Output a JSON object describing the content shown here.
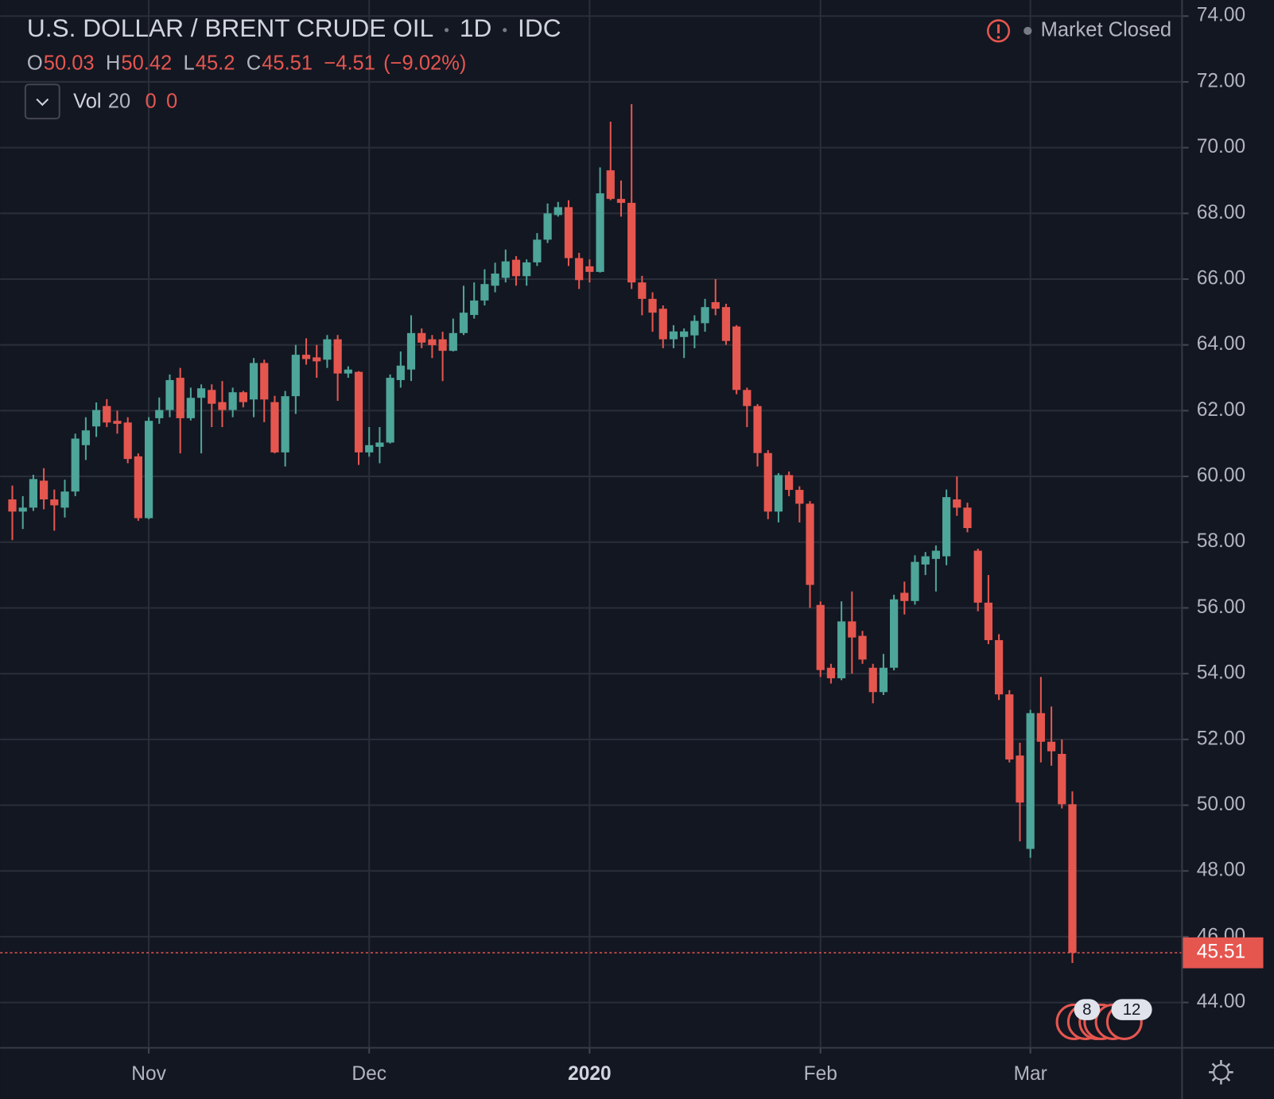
{
  "header": {
    "title": "U.S. DOLLAR / BRENT CRUDE OIL",
    "interval": "1D",
    "source": "IDC",
    "status": "Market Closed",
    "ohlc_letters": [
      "O",
      "H",
      "L",
      "C"
    ],
    "change": "−4.51",
    "change_pct": "(−9.02%)",
    "study": {
      "name": "Vol",
      "length": 20,
      "values": [
        0,
        0
      ]
    }
  },
  "chart_data": {
    "type": "candlestick",
    "up_color": "#4ea599",
    "down_color": "#e5564f",
    "open": [
      59.3,
      58.93,
      59.05,
      59.87,
      59.3,
      59.05,
      59.54,
      60.95,
      61.52,
      62.14,
      61.69,
      61.64,
      60.61,
      58.73,
      61.77,
      62.02,
      63.0,
      61.77,
      62.39,
      62.63,
      62.26,
      62.02,
      62.56,
      62.34,
      63.45,
      62.26,
      60.73,
      62.44,
      63.7,
      63.62,
      63.55,
      64.17,
      63.13,
      63.18,
      60.73,
      60.9,
      61.03,
      62.93,
      63.25,
      64.36,
      64.17,
      64.17,
      63.82,
      64.36,
      64.91,
      65.35,
      65.8,
      66.04,
      66.59,
      66.09,
      66.51,
      67.2,
      67.95,
      68.19,
      66.64,
      66.39,
      66.22,
      69.31,
      68.44,
      68.32,
      65.9,
      65.4,
      65.1,
      64.17,
      64.24,
      64.29,
      64.66,
      65.3,
      65.15,
      64.56,
      62.63,
      62.14,
      60.71,
      58.93,
      60.04,
      59.59,
      59.17,
      56.09,
      54.18,
      53.86,
      55.59,
      55.15,
      54.18,
      53.44,
      54.18,
      56.46,
      56.21,
      57.32,
      57.49,
      57.57,
      59.3,
      59.05,
      57.74,
      56.16,
      55.02,
      53.37,
      51.51,
      48.67,
      52.8,
      51.93,
      51.56,
      50.03
    ],
    "high": [
      59.72,
      59.4,
      60.05,
      60.25,
      59.6,
      59.9,
      61.3,
      61.8,
      62.25,
      62.35,
      62.0,
      61.8,
      60.7,
      61.8,
      62.4,
      63.1,
      63.3,
      62.7,
      62.8,
      62.8,
      62.9,
      62.7,
      62.6,
      63.6,
      63.55,
      62.45,
      62.6,
      64.0,
      64.2,
      64.0,
      64.3,
      64.3,
      63.35,
      63.2,
      61.5,
      61.5,
      63.1,
      63.8,
      64.9,
      64.5,
      64.3,
      64.4,
      64.8,
      65.8,
      65.9,
      66.3,
      66.5,
      66.9,
      66.7,
      66.6,
      67.4,
      68.3,
      68.35,
      68.4,
      66.8,
      66.6,
      69.4,
      70.79,
      69.0,
      71.32,
      66.1,
      65.6,
      65.2,
      64.6,
      64.5,
      64.9,
      65.4,
      66.0,
      65.25,
      64.6,
      62.7,
      62.2,
      60.8,
      60.1,
      60.15,
      59.7,
      59.25,
      56.2,
      54.3,
      56.2,
      56.5,
      55.3,
      54.3,
      54.6,
      56.4,
      56.8,
      57.6,
      57.7,
      57.9,
      59.6,
      60.0,
      59.2,
      57.8,
      57.0,
      55.2,
      53.5,
      51.9,
      52.9,
      53.9,
      53.0,
      52.0,
      50.42
    ],
    "low": [
      58.06,
      58.4,
      58.95,
      59.0,
      58.35,
      58.75,
      59.4,
      60.5,
      61.2,
      61.5,
      61.3,
      60.4,
      58.65,
      58.7,
      61.6,
      61.8,
      60.7,
      61.7,
      60.7,
      61.5,
      61.5,
      61.8,
      62.1,
      61.8,
      61.65,
      60.7,
      60.3,
      61.9,
      63.4,
      63.0,
      63.3,
      62.3,
      63.0,
      60.35,
      60.6,
      60.4,
      61.0,
      62.7,
      62.9,
      63.9,
      63.6,
      62.9,
      63.8,
      64.3,
      64.8,
      65.2,
      65.6,
      65.9,
      65.8,
      65.8,
      66.4,
      67.1,
      67.9,
      66.4,
      65.7,
      65.9,
      66.2,
      68.4,
      67.9,
      65.7,
      64.9,
      64.4,
      63.9,
      63.9,
      63.6,
      63.9,
      64.4,
      64.9,
      64.0,
      62.5,
      61.5,
      60.3,
      58.7,
      58.6,
      59.4,
      58.6,
      56.0,
      53.9,
      53.7,
      53.8,
      54.0,
      54.3,
      53.1,
      53.35,
      54.1,
      55.8,
      56.1,
      57.0,
      56.5,
      57.3,
      58.8,
      58.3,
      55.9,
      54.9,
      53.2,
      51.3,
      48.9,
      48.4,
      51.3,
      51.2,
      49.9,
      45.2
    ],
    "close": [
      58.93,
      59.05,
      59.92,
      59.3,
      59.12,
      59.54,
      61.15,
      61.4,
      62.02,
      61.64,
      61.6,
      60.53,
      58.73,
      61.69,
      62.02,
      62.93,
      61.77,
      62.39,
      62.68,
      62.21,
      62.02,
      62.56,
      62.26,
      63.45,
      62.34,
      60.73,
      62.44,
      63.7,
      63.57,
      63.5,
      64.17,
      63.13,
      63.25,
      60.73,
      60.95,
      61.03,
      63.0,
      63.37,
      64.36,
      64.07,
      63.99,
      63.82,
      64.36,
      64.98,
      65.35,
      65.85,
      66.17,
      66.54,
      66.09,
      66.51,
      67.2,
      68.0,
      68.19,
      66.64,
      65.97,
      66.22,
      68.61,
      68.44,
      68.32,
      65.9,
      65.4,
      64.98,
      64.17,
      64.41,
      64.41,
      64.73,
      65.15,
      65.1,
      64.12,
      62.63,
      62.14,
      60.71,
      58.93,
      60.04,
      59.59,
      59.17,
      56.7,
      54.11,
      53.86,
      55.59,
      55.1,
      54.43,
      53.44,
      54.18,
      56.26,
      56.21,
      57.4,
      57.57,
      57.74,
      59.37,
      59.05,
      58.43,
      56.16,
      55.02,
      53.37,
      51.39,
      50.08,
      52.8,
      51.93,
      51.64,
      50.03,
      45.51
    ],
    "xlim": [
      -1.16,
      111.45
    ],
    "xticks": [
      {
        "value": 13,
        "label": "Nov"
      },
      {
        "value": 34,
        "label": "Dec"
      },
      {
        "value": 55,
        "label": "2020"
      },
      {
        "value": 77,
        "label": "Feb"
      },
      {
        "value": 97,
        "label": "Mar"
      }
    ],
    "ylim": [
      42.62,
      74.49
    ],
    "yticks": [
      {
        "value": 44,
        "label": "44.00"
      },
      {
        "value": 46,
        "label": "46.00"
      },
      {
        "value": 48,
        "label": "48.00"
      },
      {
        "value": 50,
        "label": "50.00"
      },
      {
        "value": 52,
        "label": "52.00"
      },
      {
        "value": 54,
        "label": "54.00"
      },
      {
        "value": 56,
        "label": "56.00"
      },
      {
        "value": 58,
        "label": "58.00"
      },
      {
        "value": 60,
        "label": "60.00"
      },
      {
        "value": 62,
        "label": "62.00"
      },
      {
        "value": 64,
        "label": "64.00"
      },
      {
        "value": 66,
        "label": "66.00"
      },
      {
        "value": 68,
        "label": "68.00"
      },
      {
        "value": 70,
        "label": "70.00"
      },
      {
        "value": 72,
        "label": "72.00"
      },
      {
        "value": 74,
        "label": "74.00"
      }
    ],
    "grid": true,
    "events": [
      "8",
      "12"
    ]
  }
}
